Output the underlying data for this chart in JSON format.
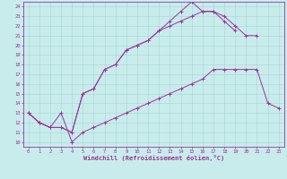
{
  "xlabel": "Windchill (Refroidissement éolien,°C)",
  "background_color": "#c8ecec",
  "grid_color": "#a8d4d4",
  "line_color": "#993399",
  "xlim": [
    -0.5,
    23.5
  ],
  "ylim": [
    9.5,
    24.5
  ],
  "xticks": [
    0,
    1,
    2,
    3,
    4,
    5,
    6,
    7,
    8,
    9,
    10,
    11,
    12,
    13,
    14,
    15,
    16,
    17,
    18,
    19,
    20,
    21,
    22,
    23
  ],
  "yticks": [
    10,
    11,
    12,
    13,
    14,
    15,
    16,
    17,
    18,
    19,
    20,
    21,
    22,
    23,
    24
  ],
  "line1_x": [
    0,
    1,
    2,
    3,
    4,
    5,
    6,
    7,
    8,
    9,
    10,
    11,
    12,
    13,
    14,
    15,
    16,
    17,
    18,
    19,
    20,
    21,
    22,
    23
  ],
  "line1_y": [
    13,
    12,
    11.5,
    13,
    10,
    11,
    11.5,
    12,
    12.5,
    13,
    13.5,
    14,
    14.5,
    15,
    15.5,
    16,
    16.5,
    17.5,
    17.5,
    17.5,
    17.5,
    17.5,
    14,
    13.5
  ],
  "line2_x": [
    0,
    1,
    2,
    3,
    4,
    5,
    6,
    7,
    8,
    9,
    10,
    11,
    12,
    13,
    14,
    15,
    16,
    17,
    18,
    19,
    20,
    21
  ],
  "line2_y": [
    13,
    12,
    11.5,
    11.5,
    11,
    15,
    15.5,
    17.5,
    18,
    19.5,
    20,
    20.5,
    21.5,
    22,
    22.5,
    23,
    23.5,
    23.5,
    23,
    22,
    21,
    21
  ],
  "line3_x": [
    0,
    1,
    2,
    3,
    4,
    5,
    6,
    7,
    8,
    9,
    10,
    11,
    12,
    13,
    14,
    15,
    16,
    17,
    18,
    19,
    20,
    21,
    22,
    23
  ],
  "line3_y": [
    13,
    12,
    11.5,
    11.5,
    11,
    15,
    15.5,
    17.5,
    18,
    19.5,
    20,
    20.5,
    21.5,
    22.5,
    23.5,
    24.5,
    23.5,
    23.5,
    22.5,
    21.5,
    null,
    null,
    null,
    null
  ]
}
